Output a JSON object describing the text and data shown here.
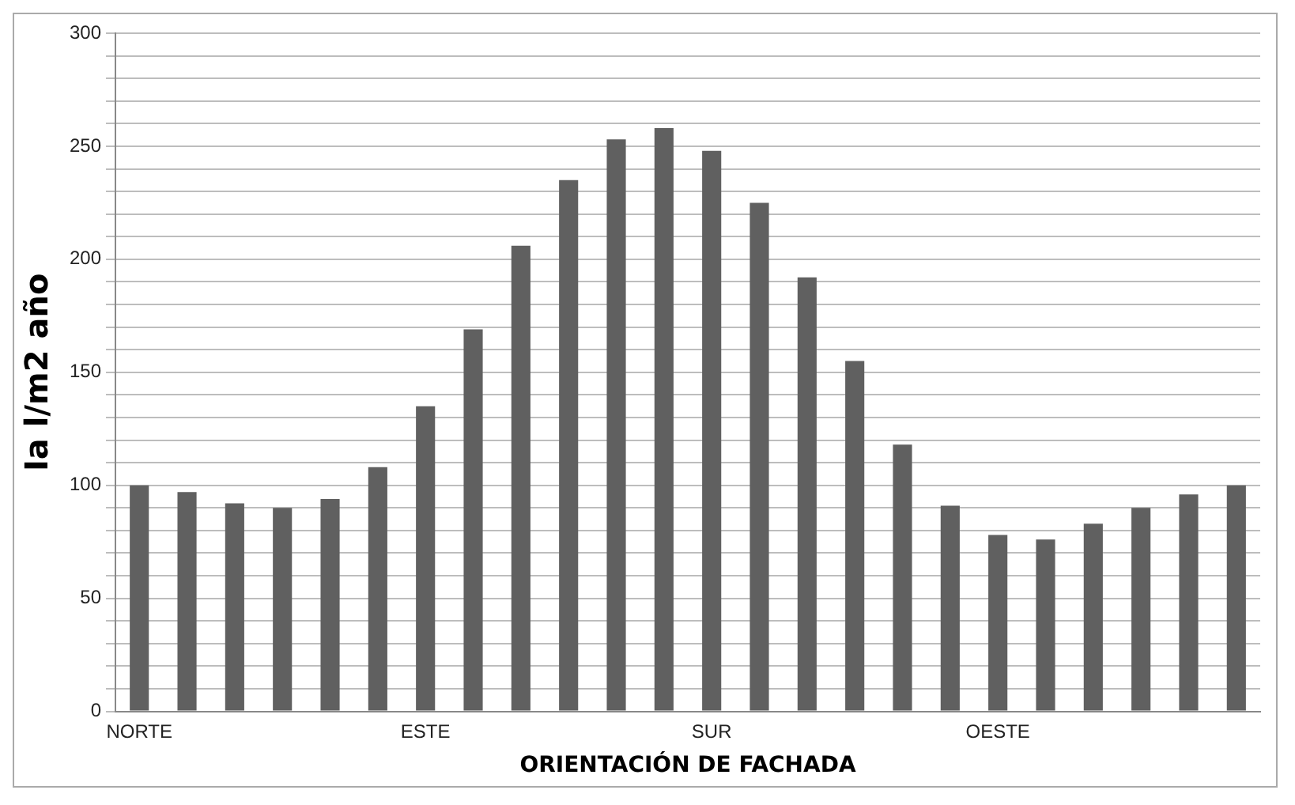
{
  "chart_data": {
    "type": "bar",
    "xlabel": "ORIENTACIÓN DE FACHADA",
    "ylabel": "Ia l/m2 año",
    "categories": [
      "NORTE",
      null,
      null,
      null,
      null,
      null,
      "ESTE",
      null,
      null,
      null,
      null,
      null,
      "SUR",
      null,
      null,
      null,
      null,
      null,
      "OESTE",
      null,
      null,
      null,
      null,
      null
    ],
    "values": [
      100,
      97,
      92,
      90,
      94,
      108,
      135,
      169,
      206,
      235,
      253,
      258,
      248,
      225,
      192,
      155,
      118,
      91,
      78,
      76,
      83,
      90,
      96,
      100
    ],
    "color": "#606060",
    "ylim": [
      0,
      300
    ],
    "yticks": [
      0,
      {
        "value": 10,
        "label": null
      },
      {
        "value": 20,
        "label": null
      },
      {
        "value": 30,
        "label": null
      },
      {
        "value": 40,
        "label": null
      },
      50,
      {
        "value": 60,
        "label": null
      },
      {
        "value": 70,
        "label": null
      },
      {
        "value": 80,
        "label": null
      },
      {
        "value": 90,
        "label": null
      },
      100,
      {
        "value": 110,
        "label": null
      },
      {
        "value": 120,
        "label": null
      },
      {
        "value": 130,
        "label": null
      },
      {
        "value": 140,
        "label": null
      },
      150,
      {
        "value": 160,
        "label": null
      },
      {
        "value": 170,
        "label": null
      },
      {
        "value": 180,
        "label": null
      },
      {
        "value": 190,
        "label": null
      },
      200,
      {
        "value": 210,
        "label": null
      },
      {
        "value": 220,
        "label": null
      },
      {
        "value": 230,
        "label": null
      },
      {
        "value": 240,
        "label": null
      },
      250,
      {
        "value": 260,
        "label": null
      },
      {
        "value": 270,
        "label": null
      },
      {
        "value": 280,
        "label": null
      },
      {
        "value": 290,
        "label": null
      },
      300
    ],
    "grid": "y"
  }
}
